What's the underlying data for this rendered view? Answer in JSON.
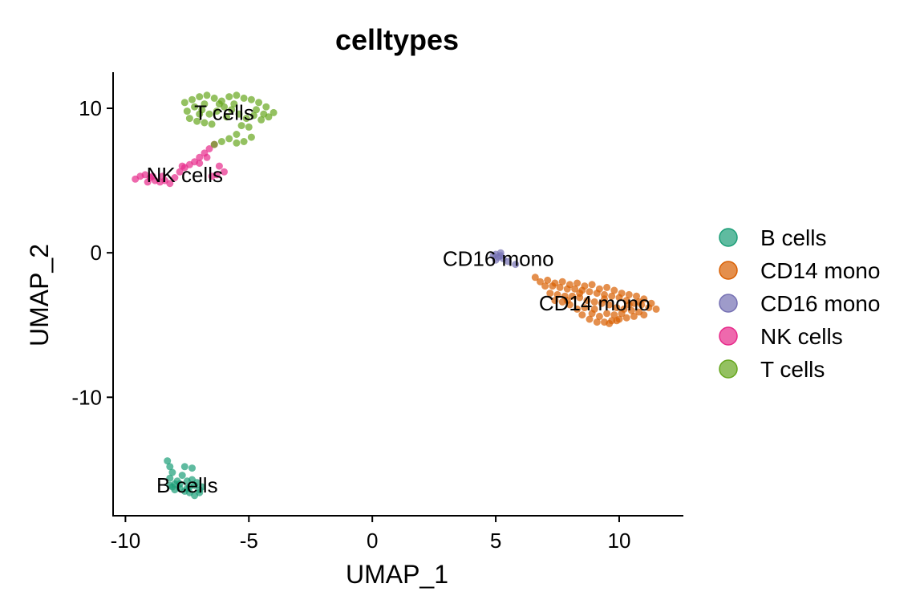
{
  "chart_data": {
    "type": "scatter",
    "title": "celltypes",
    "xlabel": "UMAP_1",
    "ylabel": "UMAP_2",
    "xlim": [
      -10.5,
      12.6
    ],
    "ylim": [
      -18.2,
      12.5
    ],
    "xticks": [
      -10,
      -5,
      0,
      5,
      10
    ],
    "xtick_labels": [
      "-10",
      "-5",
      "0",
      "5",
      "10"
    ],
    "yticks": [
      10,
      0,
      -10
    ],
    "ytick_labels": [
      "10",
      "0",
      "-10"
    ],
    "grid": false,
    "legend_position": "right",
    "series": [
      {
        "name": "B cells",
        "color": "#1B9E77",
        "points": [
          [
            -8.3,
            -14.4
          ],
          [
            -8.2,
            -14.8
          ],
          [
            -8.1,
            -15.2
          ],
          [
            -8.2,
            -15.6
          ],
          [
            -8.0,
            -16.0
          ],
          [
            -7.8,
            -16.3
          ],
          [
            -7.6,
            -16.5
          ],
          [
            -7.4,
            -16.6
          ],
          [
            -7.2,
            -16.8
          ],
          [
            -7.0,
            -16.6
          ],
          [
            -6.9,
            -16.2
          ],
          [
            -7.1,
            -15.9
          ],
          [
            -7.3,
            -15.7
          ],
          [
            -7.5,
            -15.8
          ],
          [
            -7.7,
            -15.4
          ],
          [
            -7.9,
            -15.8
          ],
          [
            -8.1,
            -16.2
          ],
          [
            -7.6,
            -14.8
          ],
          [
            -7.3,
            -14.9
          ],
          [
            -7.0,
            -16.4
          ],
          [
            -7.4,
            -16.2
          ],
          [
            -7.8,
            -16.0
          ],
          [
            -8.2,
            -16.1
          ],
          [
            -8.0,
            -16.4
          ],
          [
            -7.2,
            -16.1
          ],
          [
            -7.5,
            -16.3
          ]
        ]
      },
      {
        "name": "CD14 mono",
        "color": "#D95F02",
        "points": [
          [
            6.6,
            -1.7
          ],
          [
            6.8,
            -2.0
          ],
          [
            7.1,
            -1.9
          ],
          [
            7.4,
            -2.1
          ],
          [
            7.7,
            -2.0
          ],
          [
            8.0,
            -2.2
          ],
          [
            8.3,
            -2.1
          ],
          [
            8.6,
            -2.3
          ],
          [
            8.9,
            -2.2
          ],
          [
            9.2,
            -2.5
          ],
          [
            9.5,
            -2.4
          ],
          [
            9.8,
            -2.6
          ],
          [
            10.1,
            -2.8
          ],
          [
            10.4,
            -2.9
          ],
          [
            10.7,
            -3.0
          ],
          [
            11.0,
            -3.2
          ],
          [
            11.3,
            -3.5
          ],
          [
            11.5,
            -3.9
          ],
          [
            11.2,
            -3.8
          ],
          [
            10.9,
            -3.6
          ],
          [
            10.6,
            -3.5
          ],
          [
            10.3,
            -3.3
          ],
          [
            10.0,
            -3.1
          ],
          [
            9.7,
            -3.0
          ],
          [
            9.4,
            -2.9
          ],
          [
            9.1,
            -2.8
          ],
          [
            8.8,
            -2.7
          ],
          [
            8.5,
            -2.6
          ],
          [
            8.2,
            -2.5
          ],
          [
            7.9,
            -2.5
          ],
          [
            7.6,
            -2.4
          ],
          [
            7.3,
            -2.3
          ],
          [
            7.0,
            -2.3
          ],
          [
            7.2,
            -2.8
          ],
          [
            7.5,
            -2.9
          ],
          [
            7.8,
            -3.0
          ],
          [
            8.1,
            -3.0
          ],
          [
            8.4,
            -3.1
          ],
          [
            8.7,
            -3.3
          ],
          [
            9.0,
            -3.4
          ],
          [
            9.3,
            -3.5
          ],
          [
            9.6,
            -3.6
          ],
          [
            9.9,
            -3.8
          ],
          [
            10.2,
            -3.9
          ],
          [
            10.5,
            -4.0
          ],
          [
            10.8,
            -4.1
          ],
          [
            11.0,
            -4.3
          ],
          [
            10.6,
            -4.4
          ],
          [
            10.3,
            -4.5
          ],
          [
            10.0,
            -4.6
          ],
          [
            9.7,
            -4.7
          ],
          [
            9.4,
            -4.8
          ],
          [
            9.1,
            -4.8
          ],
          [
            8.8,
            -4.6
          ],
          [
            8.5,
            -4.3
          ],
          [
            8.3,
            -3.9
          ],
          [
            8.0,
            -3.6
          ],
          [
            7.7,
            -3.4
          ],
          [
            7.4,
            -3.3
          ],
          [
            8.9,
            -4.2
          ],
          [
            9.2,
            -4.4
          ],
          [
            9.5,
            -4.2
          ],
          [
            9.8,
            -4.3
          ],
          [
            10.1,
            -4.2
          ],
          [
            9.6,
            -4.9
          ],
          [
            9.9,
            -4.7
          ],
          [
            8.6,
            -3.8
          ],
          [
            9.0,
            -3.9
          ],
          [
            9.4,
            -3.2
          ],
          [
            8.4,
            -2.8
          ],
          [
            7.9,
            -3.3
          ],
          [
            10.4,
            -3.6
          ],
          [
            10.8,
            -3.4
          ]
        ]
      },
      {
        "name": "CD16 mono",
        "color": "#7570B3",
        "points": [
          [
            4.9,
            -0.2
          ],
          [
            5.0,
            -0.1
          ],
          [
            5.1,
            -0.3
          ],
          [
            5.2,
            -0.2
          ],
          [
            5.3,
            -0.4
          ],
          [
            5.0,
            -0.5
          ],
          [
            5.2,
            0.0
          ],
          [
            5.5,
            -0.6
          ],
          [
            5.8,
            -0.8
          ]
        ]
      },
      {
        "name": "NK cells",
        "color": "#E7298A",
        "points": [
          [
            -9.6,
            5.1
          ],
          [
            -9.4,
            5.3
          ],
          [
            -9.2,
            5.4
          ],
          [
            -9.0,
            5.2
          ],
          [
            -8.8,
            5.0
          ],
          [
            -8.6,
            4.9
          ],
          [
            -8.4,
            5.0
          ],
          [
            -8.2,
            4.8
          ],
          [
            -8.0,
            5.2
          ],
          [
            -7.8,
            5.6
          ],
          [
            -7.6,
            5.9
          ],
          [
            -7.4,
            6.1
          ],
          [
            -7.2,
            6.3
          ],
          [
            -7.0,
            6.6
          ],
          [
            -6.8,
            6.9
          ],
          [
            -6.6,
            7.2
          ],
          [
            -6.4,
            7.5
          ],
          [
            -6.2,
            6.0
          ],
          [
            -6.0,
            5.6
          ],
          [
            -6.3,
            5.4
          ],
          [
            -6.5,
            5.3
          ],
          [
            -8.9,
            5.3
          ],
          [
            -9.1,
            4.9
          ],
          [
            -8.5,
            5.3
          ],
          [
            -7.7,
            6.0
          ],
          [
            -7.0,
            6.2
          ],
          [
            -6.7,
            6.6
          ]
        ]
      },
      {
        "name": "T cells",
        "color": "#66A61E",
        "points": [
          [
            -7.6,
            10.4
          ],
          [
            -7.3,
            10.6
          ],
          [
            -7.0,
            10.8
          ],
          [
            -6.7,
            10.9
          ],
          [
            -6.4,
            10.7
          ],
          [
            -6.1,
            10.5
          ],
          [
            -5.8,
            10.8
          ],
          [
            -5.5,
            10.9
          ],
          [
            -5.2,
            10.7
          ],
          [
            -4.9,
            10.6
          ],
          [
            -4.6,
            10.4
          ],
          [
            -4.3,
            10.1
          ],
          [
            -4.0,
            9.7
          ],
          [
            -4.2,
            9.4
          ],
          [
            -4.5,
            9.2
          ],
          [
            -4.8,
            9.5
          ],
          [
            -5.1,
            9.3
          ],
          [
            -5.4,
            9.6
          ],
          [
            -5.7,
            9.9
          ],
          [
            -6.0,
            10.1
          ],
          [
            -6.3,
            9.8
          ],
          [
            -6.6,
            9.6
          ],
          [
            -6.9,
            9.9
          ],
          [
            -7.2,
            10.1
          ],
          [
            -7.5,
            9.8
          ],
          [
            -7.4,
            9.3
          ],
          [
            -7.1,
            9.1
          ],
          [
            -6.8,
            9.0
          ],
          [
            -6.5,
            8.9
          ],
          [
            -5.3,
            8.8
          ],
          [
            -5.5,
            8.2
          ],
          [
            -5.8,
            7.9
          ],
          [
            -6.1,
            7.7
          ],
          [
            -6.4,
            7.5
          ],
          [
            -5.2,
            7.7
          ],
          [
            -5.5,
            7.6
          ],
          [
            -4.9,
            8.0
          ],
          [
            -5.0,
            8.7
          ],
          [
            -4.7,
            9.9
          ],
          [
            -6.2,
            10.3
          ],
          [
            -6.8,
            10.3
          ],
          [
            -7.0,
            9.6
          ],
          [
            -5.6,
            10.3
          ],
          [
            -4.4,
            9.6
          ],
          [
            -5.9,
            9.4
          ]
        ]
      }
    ],
    "labels": [
      {
        "text": "T cells",
        "x": -6.0,
        "y": 9.7
      },
      {
        "text": "NK cells",
        "x": -7.6,
        "y": 5.4
      },
      {
        "text": "CD16 mono",
        "x": 5.1,
        "y": -0.4
      },
      {
        "text": "CD14 mono",
        "x": 9.0,
        "y": -3.5
      },
      {
        "text": "B cells",
        "x": -7.5,
        "y": -16.1
      }
    ]
  }
}
